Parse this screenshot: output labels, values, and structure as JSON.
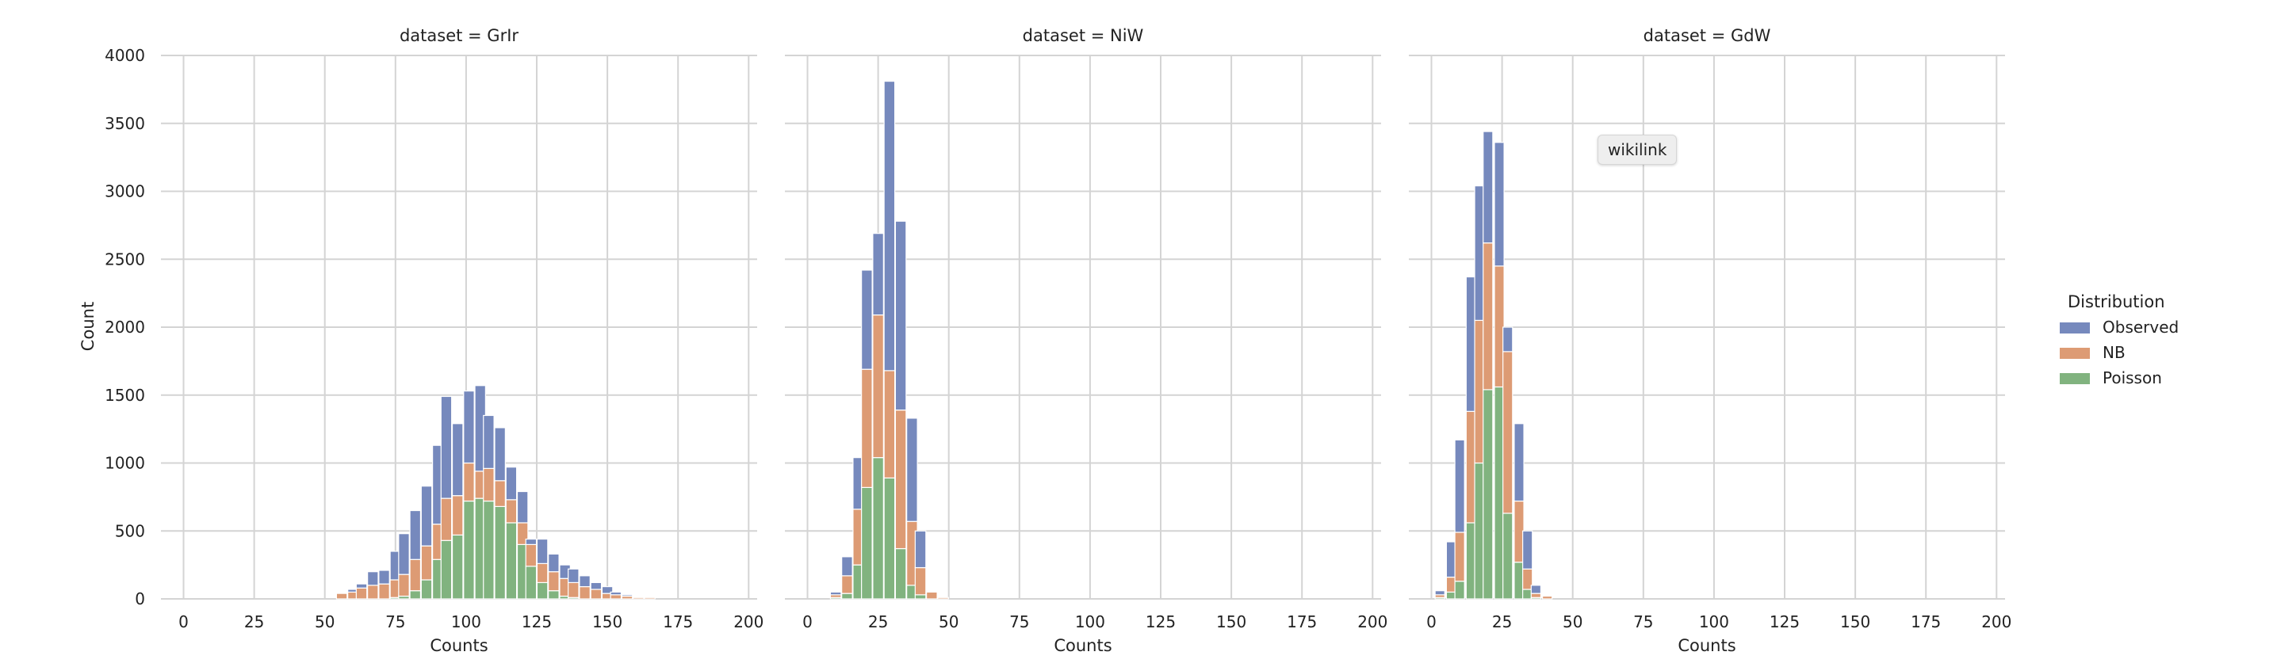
{
  "chart_data": {
    "type": "bar",
    "stacked": true,
    "grid": true,
    "legend_placement": "right",
    "legend_title": "Distribution",
    "ylabel": "Count",
    "xlabel": "Counts",
    "ylim": [
      0,
      4000
    ],
    "xlim": [
      -8,
      203
    ],
    "xticks": [
      0,
      25,
      50,
      75,
      100,
      125,
      150,
      175,
      200
    ],
    "yticks": [
      0,
      500,
      1000,
      1500,
      2000,
      2500,
      3000,
      3500,
      4000
    ],
    "xtick_labels": [
      "0",
      "25",
      "50",
      "75",
      "100",
      "125",
      "150",
      "175",
      "200"
    ],
    "ytick_labels": [
      "0",
      "500",
      "1000",
      "1500",
      "2000",
      "2500",
      "3000",
      "3500",
      "4000"
    ],
    "series_colors": {
      "Poisson": "#81b37f",
      "NB": "#dd9b74",
      "Observed": "#7689bd"
    },
    "legend": [
      {
        "name": "Observed",
        "color": "#7689bd"
      },
      {
        "name": "NB",
        "color": "#dd9b74"
      },
      {
        "name": "Poisson",
        "color": "#81b37f"
      }
    ],
    "panels": [
      {
        "title": "dataset = GrIr",
        "bin_width": 3.75,
        "x": [
          56,
          60,
          63,
          67,
          71,
          75,
          78,
          82,
          86,
          90,
          93,
          97,
          101,
          105,
          108,
          112,
          116,
          120,
          123,
          127,
          131,
          135,
          138,
          142,
          146,
          150,
          153,
          157,
          161,
          165,
          168
        ],
        "series": [
          {
            "name": "Poisson",
            "values": [
              0,
              0,
              0,
              0,
              0,
              10,
              20,
              60,
              140,
              290,
              430,
              470,
              720,
              740,
              720,
              680,
              560,
              400,
              240,
              120,
              60,
              20,
              10,
              0,
              0,
              0,
              0,
              0,
              0,
              0,
              0
            ]
          },
          {
            "name": "NB",
            "values": [
              40,
              50,
              80,
              100,
              110,
              130,
              160,
              230,
              250,
              260,
              310,
              290,
              280,
              200,
              240,
              190,
              170,
              160,
              160,
              140,
              140,
              130,
              110,
              90,
              70,
              40,
              30,
              20,
              10,
              10,
              0
            ]
          },
          {
            "name": "Observed",
            "values": [
              0,
              20,
              30,
              100,
              100,
              210,
              300,
              360,
              440,
              580,
              750,
              530,
              530,
              630,
              390,
              390,
              240,
              230,
              40,
              180,
              130,
              100,
              100,
              80,
              50,
              50,
              20,
              10,
              0,
              0,
              0
            ]
          }
        ]
      },
      {
        "title": "dataset = NiW",
        "bin_width": 3.78,
        "x": [
          10,
          14,
          18,
          21,
          25,
          29,
          33,
          37,
          40,
          44,
          48
        ],
        "series": [
          {
            "name": "Poisson",
            "values": [
              10,
              40,
              250,
              820,
              1040,
              890,
              370,
              100,
              30,
              0,
              0
            ]
          },
          {
            "name": "NB",
            "values": [
              20,
              130,
              410,
              870,
              1050,
              790,
              1020,
              470,
              200,
              50,
              10
            ]
          },
          {
            "name": "Observed",
            "values": [
              20,
              140,
              380,
              730,
              600,
              2130,
              1390,
              760,
              270,
              0,
              0
            ]
          }
        ]
      },
      {
        "title": "dataset = GdW",
        "bin_width": 3.4,
        "x": [
          3,
          7,
          10,
          14,
          17,
          20,
          24,
          27,
          31,
          34,
          37,
          41,
          44,
          48
        ],
        "series": [
          {
            "name": "Poisson",
            "values": [
              10,
              50,
              130,
              560,
              1000,
              1540,
              1560,
              630,
              270,
              70,
              10,
              0,
              0,
              0
            ]
          },
          {
            "name": "NB",
            "values": [
              20,
              110,
              360,
              820,
              1050,
              1080,
              890,
              1190,
              450,
              150,
              30,
              20,
              0,
              0
            ]
          },
          {
            "name": "Observed",
            "values": [
              30,
              260,
              680,
              990,
              990,
              820,
              910,
              180,
              570,
              280,
              60,
              0,
              0,
              0
            ]
          }
        ]
      }
    ]
  },
  "tooltip": {
    "text": "wikilink"
  }
}
